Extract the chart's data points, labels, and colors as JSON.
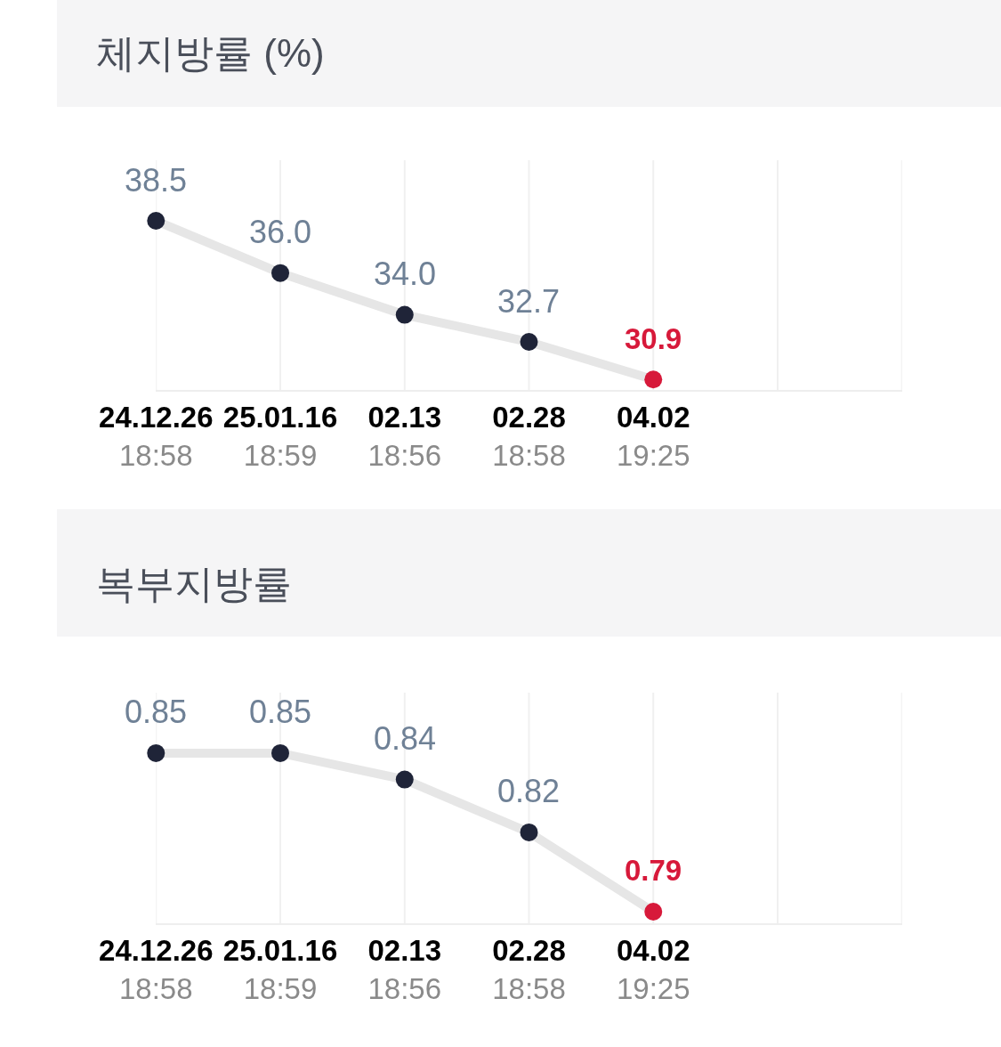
{
  "chart_data": [
    {
      "type": "line",
      "title": "체지방률 (%)",
      "categories": [
        "24.12.26\n18:58",
        "25.01.16\n18:59",
        "02.13\n18:56",
        "02.28\n18:58",
        "04.02\n19:25",
        null,
        null
      ],
      "ylim": [
        30.4,
        41.4
      ],
      "grid": "x",
      "series": [
        {
          "marker": "none",
          "color": "#e6e6e6",
          "values": [
            38.5,
            36.0,
            34.0,
            32.7,
            30.9,
            null,
            null
          ]
        },
        {
          "type": "scatter",
          "marker": "circle",
          "color": "#1f2438",
          "values": [
            38.5,
            36.0,
            34.0,
            32.7,
            null,
            null,
            null
          ],
          "value_labels": [
            "38.5",
            "36.0",
            "34.0",
            "32.7",
            null,
            null,
            null
          ]
        },
        {
          "type": "scatter",
          "marker": "circle",
          "color": "#d7193a",
          "values": [
            null,
            null,
            null,
            null,
            30.9,
            null,
            null
          ],
          "value_labels": [
            null,
            null,
            null,
            null,
            "30.9",
            null,
            null
          ]
        }
      ]
    },
    {
      "type": "line",
      "title": "복부지방률",
      "categories": [
        "24.12.26\n18:58",
        "25.01.16\n18:59",
        "02.13\n18:56",
        "02.28\n18:58",
        "04.02\n19:25",
        null,
        null
      ],
      "ylim": [
        0.7856,
        0.8729
      ],
      "grid": "x",
      "series": [
        {
          "marker": "none",
          "color": "#e6e6e6",
          "values": [
            0.85,
            0.85,
            0.84,
            0.82,
            0.79,
            null,
            null
          ]
        },
        {
          "type": "scatter",
          "marker": "circle",
          "color": "#1f2438",
          "values": [
            0.85,
            0.85,
            0.84,
            0.82,
            null,
            null,
            null
          ],
          "value_labels": [
            "0.85",
            "0.85",
            "0.84",
            "0.82",
            null,
            null,
            null
          ]
        },
        {
          "type": "scatter",
          "marker": "circle",
          "color": "#d7193a",
          "values": [
            null,
            null,
            null,
            null,
            0.79,
            null,
            null
          ],
          "value_labels": [
            null,
            null,
            null,
            null,
            "0.79",
            null,
            null
          ]
        }
      ]
    }
  ]
}
